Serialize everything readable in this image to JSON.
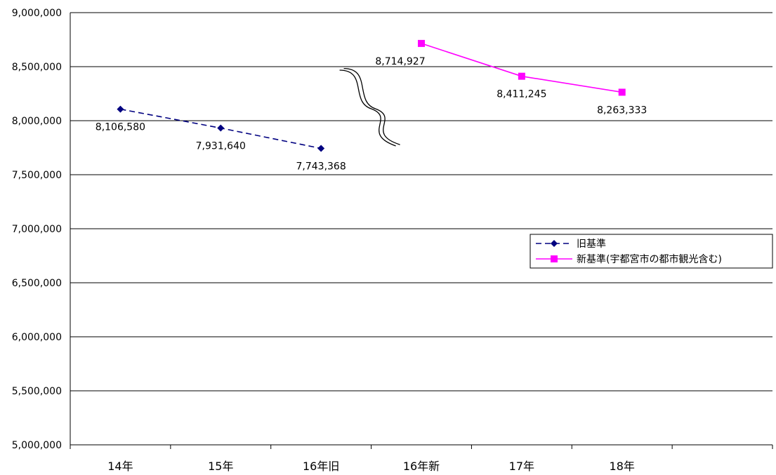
{
  "chart_data": {
    "type": "line",
    "categories": [
      "14年",
      "15年",
      "16年旧",
      "16年新",
      "17年",
      "18年"
    ],
    "ylim": [
      5000000,
      9000000
    ],
    "yticks": [
      5000000,
      5500000,
      6000000,
      6500000,
      7000000,
      7500000,
      8000000,
      8500000,
      9000000
    ],
    "ytick_labels": [
      "5,000,000",
      "5,500,000",
      "6,000,000",
      "6,500,000",
      "7,000,000",
      "7,500,000",
      "8,000,000",
      "8,500,000",
      "9,000,000"
    ],
    "grid": "horizontal",
    "legend_position": "right",
    "series": [
      {
        "name": "旧基準",
        "color": "#000080",
        "line_style": "dashed",
        "marker": "diamond",
        "x": [
          "14年",
          "15年",
          "16年旧"
        ],
        "values": [
          8106580,
          7931640,
          7743368
        ],
        "labels": [
          "8,106,580",
          "7,931,640",
          "7,743,368"
        ]
      },
      {
        "name": "新基準(宇都宮市の都市観光含む)",
        "color": "#FF00FF",
        "line_style": "solid",
        "marker": "square",
        "x": [
          "16年新",
          "17年",
          "18年"
        ],
        "values": [
          8714927,
          8411245,
          8263333
        ],
        "labels": [
          "8,714,927",
          "8,411,245",
          "8,263,333"
        ]
      }
    ],
    "annotation": "break-marks"
  }
}
